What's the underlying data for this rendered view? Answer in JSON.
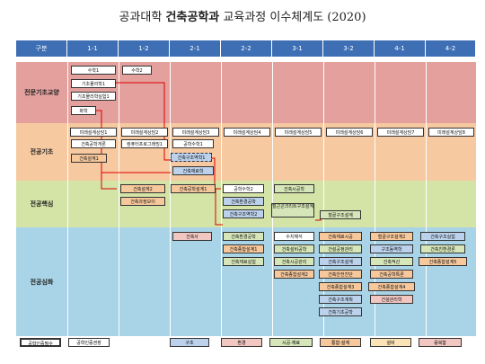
{
  "title_normal": "공과대학 ",
  "title_bold": "건축공학과",
  "title_rest": " 교육과정 이수체계도 (2020)",
  "headers": [
    "구분",
    "1-1",
    "1-2",
    "2-1",
    "2-2",
    "3-1",
    "3-2",
    "4-1",
    "4-2"
  ],
  "rows": [
    "전문기초교양",
    "전공기초",
    "전공핵심",
    "전공심화"
  ],
  "courses": [
    "수학1",
    "수학2",
    "기초물리학1",
    "기초물리학실험1",
    "화학",
    "미래설계상담1",
    "미래설계상담2",
    "미래설계상담3",
    "미래설계상담4",
    "미래설계상담5",
    "미래설계상담6",
    "미래설계상담7",
    "미래설계상담8",
    "건축공학개론",
    "컴퓨터프로그래밍1",
    "공학수학1",
    "건축설계1",
    "건축구조역학1",
    "건축재료학",
    "건축설계2",
    "건축공학설계1",
    "건축과정보이",
    "공학수학2",
    "건축환경공학",
    "건축구조역학2",
    "철근콘크리트구조설계",
    "건축시공학",
    "철골구조설계",
    "건축사",
    "건축환경공학",
    "건축종합설계1",
    "건축재료실험",
    "수치해석",
    "건축설비공학",
    "건축시공관리",
    "건축종합설계2",
    "건축재료시공",
    "건설공정관리",
    "건축구조설계",
    "건축안전진단",
    "건축종합설계3",
    "건축구조계획",
    "건축기초공학",
    "철골구조설계2",
    "구조동역학",
    "건축적산",
    "건축공학특론",
    "건축종합설계4",
    "친환경건축",
    "건설관리학",
    "건축구조실험",
    "건축친환경론",
    "건축종합설계5"
  ],
  "legend": [
    "공학인증필수",
    "공학인증권장",
    "구조",
    "환경",
    "시공·재료",
    "통합·설계",
    "설비",
    "공동",
    "융복합"
  ]
}
